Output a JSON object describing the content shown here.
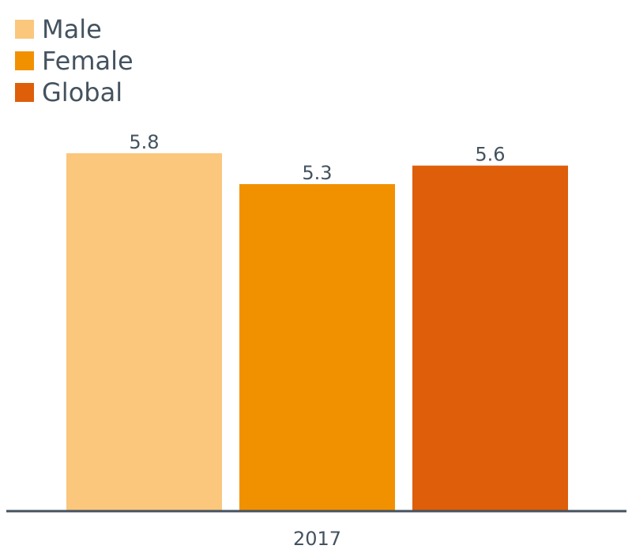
{
  "chart_data": {
    "type": "bar",
    "categories": [
      "2017"
    ],
    "series": [
      {
        "name": "Male",
        "values": [
          5.8
        ],
        "color": "#fac77d"
      },
      {
        "name": "Female",
        "values": [
          5.3
        ],
        "color": "#f29100"
      },
      {
        "name": "Global",
        "values": [
          5.6
        ],
        "color": "#de5e0a"
      }
    ],
    "data_labels": [
      "5.8",
      "5.3",
      "5.6"
    ],
    "title": "",
    "xlabel": "",
    "ylabel": "",
    "ylim": [
      0,
      5.8
    ],
    "grid": false,
    "legend_position": "top-left",
    "axis_color": "#44525f",
    "text_color": "#44525f"
  }
}
